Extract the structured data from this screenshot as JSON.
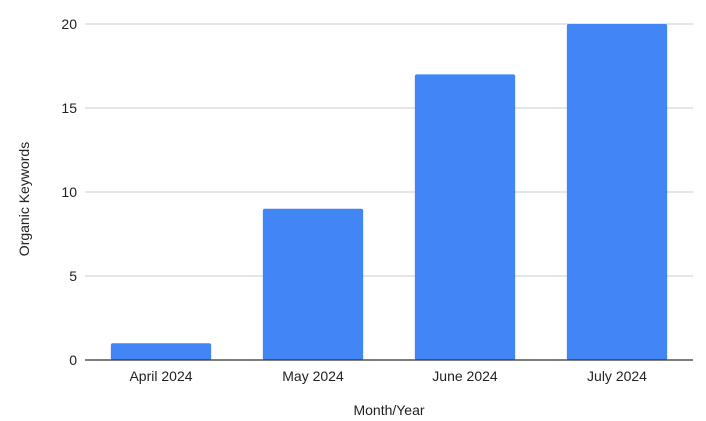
{
  "chart_data": {
    "type": "bar",
    "title": "",
    "xlabel": "Month/Year",
    "ylabel": "Organic Keywords",
    "categories": [
      "April 2024",
      "May 2024",
      "June 2024",
      "July 2024"
    ],
    "series": [
      {
        "values": [
          1,
          9,
          17,
          20
        ]
      }
    ],
    "ylim": [
      0,
      20
    ],
    "yticks": [
      0,
      5,
      10,
      15,
      20
    ],
    "grid": true,
    "legend": "none",
    "bar_color": "#4285f4",
    "grid_color": "#cccccc",
    "axis_color": "#333333"
  }
}
